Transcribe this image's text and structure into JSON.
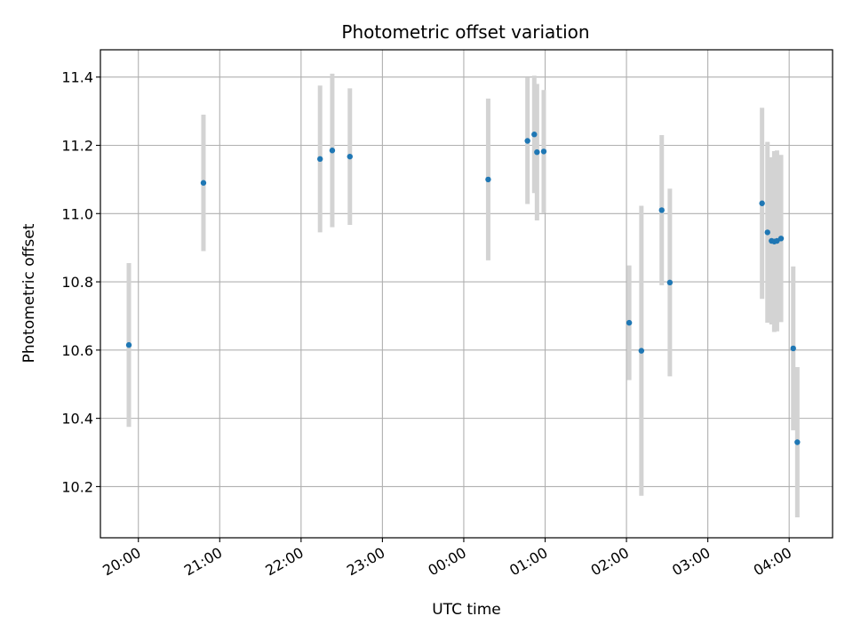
{
  "chart_data": {
    "type": "scatter",
    "title": "Photometric offset variation",
    "xlabel": "UTC time",
    "ylabel": "Photometric offset",
    "x_axis_kind": "time",
    "xlim": [
      "19:32",
      "04:32"
    ],
    "ylim": [
      10.05,
      11.48
    ],
    "x_ticks": [
      "20:00",
      "21:00",
      "22:00",
      "23:00",
      "00:00",
      "01:00",
      "02:00",
      "03:00",
      "04:00"
    ],
    "y_ticks": [
      "10.2",
      "10.4",
      "10.6",
      "10.8",
      "11.0",
      "11.2",
      "11.4"
    ],
    "grid": true,
    "series": [
      {
        "marker_color": "#1f77b4",
        "errorbar_color": "#d3d3d3",
        "points": [
          {
            "x": "19:53",
            "y": 10.615,
            "err": 0.24
          },
          {
            "x": "20:48",
            "y": 11.09,
            "err": 0.2
          },
          {
            "x": "22:14",
            "y": 11.16,
            "err": 0.215
          },
          {
            "x": "22:23",
            "y": 11.185,
            "err": 0.225
          },
          {
            "x": "22:36",
            "y": 11.167,
            "err": 0.2
          },
          {
            "x": "00:18",
            "y": 11.1,
            "err": 0.237
          },
          {
            "x": "00:47",
            "y": 11.213,
            "err": 0.185
          },
          {
            "x": "00:52",
            "y": 11.232,
            "err": 0.172
          },
          {
            "x": "00:54",
            "y": 11.18,
            "err": 0.2
          },
          {
            "x": "00:59",
            "y": 11.182,
            "err": 0.18
          },
          {
            "x": "02:02",
            "y": 10.68,
            "err": 0.168
          },
          {
            "x": "02:11",
            "y": 10.598,
            "err": 0.425
          },
          {
            "x": "02:26",
            "y": 11.01,
            "err": 0.22
          },
          {
            "x": "02:32",
            "y": 10.798,
            "err": 0.275
          },
          {
            "x": "03:40",
            "y": 11.03,
            "err": 0.28
          },
          {
            "x": "03:44",
            "y": 10.945,
            "err": 0.265
          },
          {
            "x": "03:47",
            "y": 10.92,
            "err": 0.245
          },
          {
            "x": "03:49",
            "y": 10.918,
            "err": 0.265
          },
          {
            "x": "03:51",
            "y": 10.92,
            "err": 0.265
          },
          {
            "x": "03:54",
            "y": 10.927,
            "err": 0.245
          },
          {
            "x": "04:03",
            "y": 10.605,
            "err": 0.24
          },
          {
            "x": "04:06",
            "y": 10.33,
            "err": 0.22
          }
        ]
      }
    ]
  }
}
